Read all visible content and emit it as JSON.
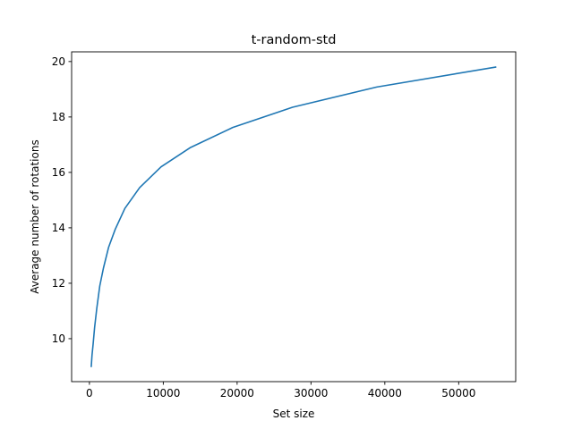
{
  "chart_data": {
    "type": "line",
    "title": "t-random-std",
    "xlabel": "Set size",
    "ylabel": "Average number of rotations",
    "xlim": [
      -2410,
      57720
    ],
    "ylim": [
      8.45,
      20.35
    ],
    "xticks": [
      0,
      10000,
      20000,
      30000,
      40000,
      50000
    ],
    "xtick_labels": [
      "0",
      "10000",
      "20000",
      "30000",
      "40000",
      "50000"
    ],
    "yticks": [
      10,
      12,
      14,
      16,
      18,
      20
    ],
    "ytick_labels": [
      "10",
      "12",
      "14",
      "16",
      "18",
      "20"
    ],
    "grid": false,
    "legend": "none",
    "series": [
      {
        "color": "#1f77b4",
        "x": [
          250,
          350,
          500,
          700,
          1000,
          1400,
          1900,
          2600,
          3500,
          4800,
          6800,
          9700,
          13700,
          19400,
          27500,
          38900,
          55000
        ],
        "y": [
          9.0,
          9.4,
          9.8,
          10.4,
          11.1,
          11.9,
          12.55,
          13.3,
          13.95,
          14.7,
          15.45,
          16.2,
          16.9,
          17.62,
          18.35,
          19.08,
          19.8
        ]
      }
    ]
  }
}
